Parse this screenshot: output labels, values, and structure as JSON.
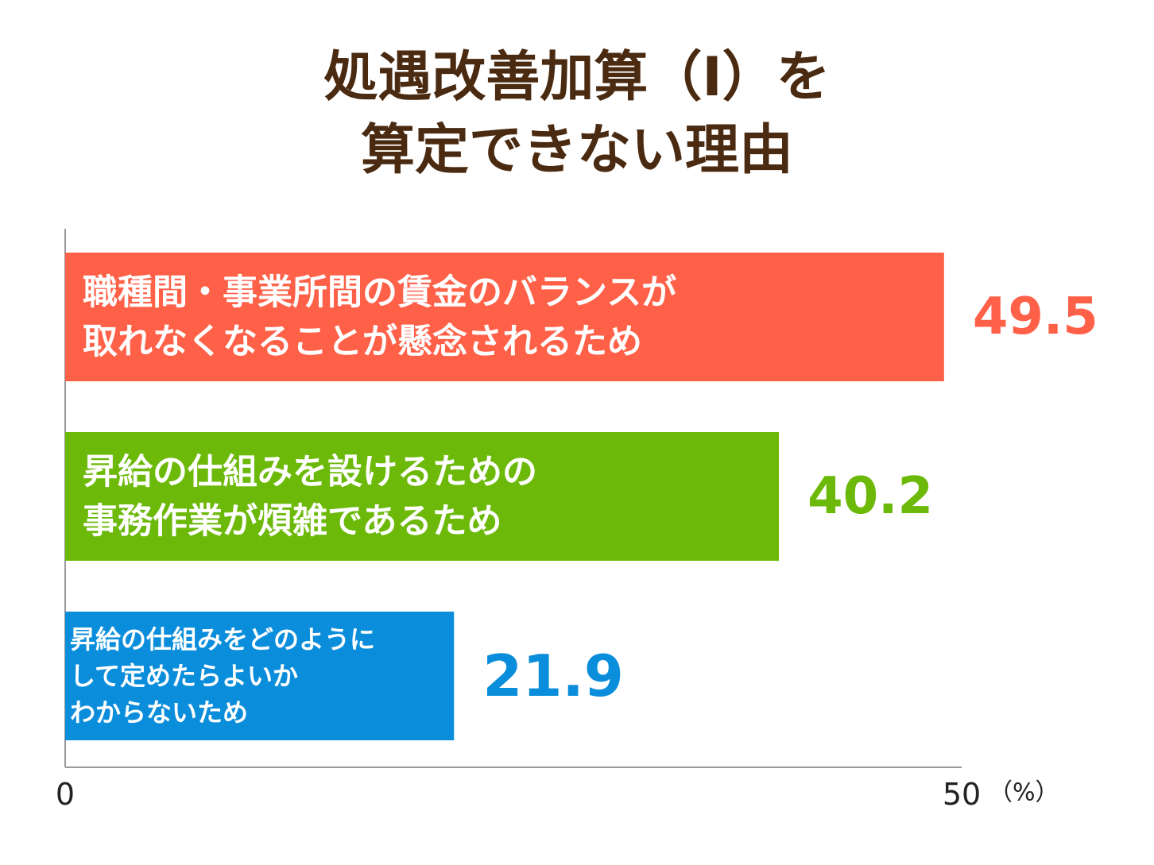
{
  "title_lines": [
    "処遇改善加算（Ⅰ）を",
    "算定できない理由"
  ],
  "chart_data": {
    "type": "bar",
    "orientation": "horizontal",
    "title": "処遇改善加算（Ⅰ）を算定できない理由",
    "categories": [
      [
        "職種間・事業所間の賃金のバランスが",
        "取れなくなることが懸念されるため"
      ],
      [
        "昇給の仕組みを設けるための",
        "事務作業が煩雑であるため"
      ],
      [
        "昇給の仕組みをどのように",
        "して定めたらよいか",
        "わからないため"
      ]
    ],
    "values": [
      49.5,
      40.2,
      21.9
    ],
    "value_labels": [
      "49.5",
      "40.2",
      "21.9"
    ],
    "colors": [
      "#ff6048",
      "#6cb90a",
      "#0a8edb"
    ],
    "xlim": [
      0,
      50
    ],
    "tick_labels": [
      "0",
      "50"
    ],
    "unit": "（%）",
    "grid": false,
    "axis_color": "#999999"
  }
}
